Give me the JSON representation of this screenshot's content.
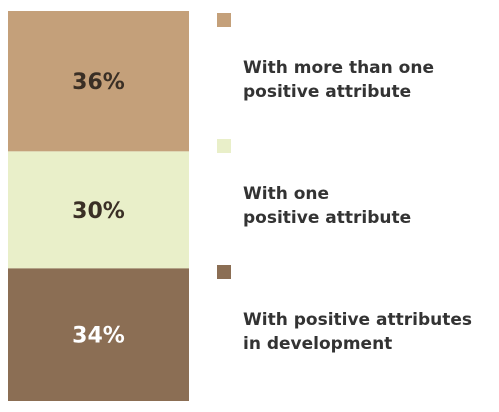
{
  "chart_data": {
    "type": "bar",
    "stacked": true,
    "unit": "%",
    "categories": [
      ""
    ],
    "series": [
      {
        "name": "With more than one positive attribute",
        "values": [
          36
        ],
        "label": "36%",
        "color": "#c4a07a",
        "text_color": "#3a2f25"
      },
      {
        "name": "With one positive attribute",
        "values": [
          30
        ],
        "label": "30%",
        "color": "#e9efc9",
        "text_color": "#3a2f25"
      },
      {
        "name": "With positive attributes in development",
        "values": [
          34
        ],
        "label": "34%",
        "color": "#8b6e54",
        "text_color": "#ffffff"
      }
    ],
    "legend_position": "right",
    "title": "",
    "xlabel": "",
    "ylabel": ""
  },
  "legend": [
    {
      "text": "With more than one\npositive attribute",
      "color": "#c4a07a"
    },
    {
      "text": "With one\npositive attribute",
      "color": "#e9efc9"
    },
    {
      "text": "With positive attributes\nin development",
      "color": "#8b6e54"
    }
  ]
}
